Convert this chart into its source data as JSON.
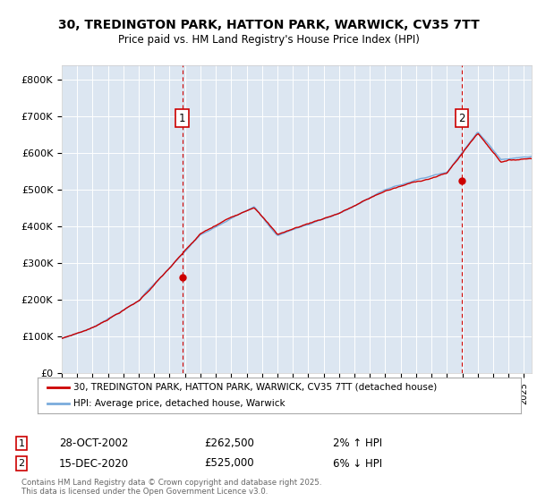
{
  "title": "30, TREDINGTON PARK, HATTON PARK, WARWICK, CV35 7TT",
  "subtitle": "Price paid vs. HM Land Registry's House Price Index (HPI)",
  "bg_color": "#dce6f1",
  "y_ticks": [
    0,
    100000,
    200000,
    300000,
    400000,
    500000,
    600000,
    700000,
    800000
  ],
  "y_labels": [
    "£0",
    "£100K",
    "£200K",
    "£300K",
    "£400K",
    "£500K",
    "£600K",
    "£700K",
    "£800K"
  ],
  "ylim": [
    0,
    840000
  ],
  "x_start_year": 1995,
  "x_end_year": 2025,
  "legend_line1": "30, TREDINGTON PARK, HATTON PARK, WARWICK, CV35 7TT (detached house)",
  "legend_line2": "HPI: Average price, detached house, Warwick",
  "annotation1_label": "1",
  "annotation1_date": "28-OCT-2002",
  "annotation1_price": "£262,500",
  "annotation1_pct": "2% ↑ HPI",
  "annotation1_year": 2002.82,
  "annotation1_value": 262500,
  "annotation2_label": "2",
  "annotation2_date": "15-DEC-2020",
  "annotation2_price": "£525,000",
  "annotation2_pct": "6% ↓ HPI",
  "annotation2_year": 2020.96,
  "annotation2_value": 525000,
  "footer": "Contains HM Land Registry data © Crown copyright and database right 2025.\nThis data is licensed under the Open Government Licence v3.0.",
  "hpi_color": "#7aabdc",
  "price_color": "#cc0000",
  "grid_color": "#ffffff",
  "dashed_line_color": "#cc0000"
}
